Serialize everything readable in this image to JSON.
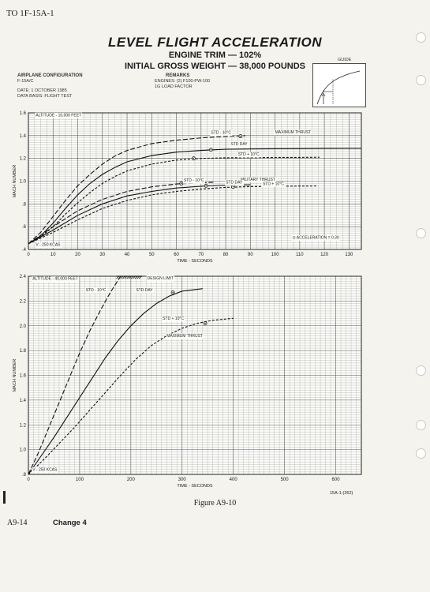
{
  "header": {
    "doc_number": "TO 1F-15A-1",
    "title": "LEVEL FLIGHT ACCELERATION",
    "subtitle1": "ENGINE TRIM — 102%",
    "subtitle2": "INITIAL GROSS WEIGHT — 38,000 POUNDS"
  },
  "config": {
    "label": "AIRPLANE CONFIGURATION",
    "value": "F-15A/C",
    "date": "DATE: 1 OCTOBER 1985",
    "data_basis": "DATA BASIS: FLIGHT TEST"
  },
  "remarks": {
    "label": "REMARKS",
    "line1": "ENGINES: (2) F100-PW-100",
    "line2": "1G LOAD FACTOR"
  },
  "guide_label": "GUIDE",
  "figure_caption": "Figure A9-10",
  "footer": {
    "page": "A9-14",
    "change": "Change 4",
    "figure_id": "15A-1-(262)"
  },
  "chart_data": [
    {
      "type": "line",
      "xlabel": "TIME - SECONDS",
      "ylabel": "MACH NUMBER",
      "xlim": [
        0,
        135
      ],
      "ylim": [
        0.4,
        1.6
      ],
      "xticks": [
        0,
        10,
        20,
        30,
        40,
        50,
        60,
        70,
        80,
        90,
        100,
        110,
        120,
        130
      ],
      "yticks": [
        0.4,
        0.6,
        0.8,
        1.0,
        1.2,
        1.4,
        1.6
      ],
      "ytick_labels": [
        ".4",
        ".6",
        ".8",
        "1.0",
        "1.2",
        "1.4",
        "1.6"
      ],
      "grid": true,
      "annotations": {
        "altitude": "ALTITUDE - 10,000 FEET",
        "start_speed": "V - 250 KCAS",
        "accel_note": "⊙ ACCELERATION = 0.30",
        "max_thrust": "MAXIMUM THRUST",
        "mil_thrust": "MILITARY THRUST"
      },
      "series": [
        {
          "name": "STD - 10°C",
          "group": "MAXIMUM THRUST",
          "style": "longdash",
          "x": [
            0,
            5,
            10,
            15,
            20,
            25,
            30,
            35,
            40,
            50,
            60,
            70,
            80,
            88
          ],
          "y": [
            0.45,
            0.55,
            0.69,
            0.83,
            0.96,
            1.06,
            1.15,
            1.22,
            1.27,
            1.33,
            1.36,
            1.38,
            1.395,
            1.4
          ]
        },
        {
          "name": "STD DAY",
          "group": "MAXIMUM THRUST",
          "style": "solid",
          "x": [
            0,
            5,
            10,
            15,
            20,
            25,
            30,
            35,
            40,
            50,
            60,
            70,
            80,
            90,
            100,
            110,
            120,
            135
          ],
          "y": [
            0.45,
            0.52,
            0.63,
            0.76,
            0.88,
            0.98,
            1.06,
            1.12,
            1.17,
            1.225,
            1.255,
            1.27,
            1.28,
            1.283,
            1.285,
            1.286,
            1.287,
            1.288
          ]
        },
        {
          "name": "STD + 10°C",
          "group": "MAXIMUM THRUST",
          "style": "shortdash",
          "x": [
            0,
            5,
            10,
            15,
            20,
            25,
            30,
            35,
            40,
            50,
            60,
            70,
            80,
            90,
            100,
            110,
            118
          ],
          "y": [
            0.45,
            0.51,
            0.6,
            0.71,
            0.81,
            0.9,
            0.98,
            1.04,
            1.09,
            1.15,
            1.185,
            1.2,
            1.205,
            1.207,
            1.208,
            1.209,
            1.21
          ]
        },
        {
          "name": "STD - 10°C",
          "group": "MILITARY THRUST",
          "style": "longdash",
          "x": [
            0,
            10,
            20,
            30,
            40,
            50,
            60,
            70,
            75
          ],
          "y": [
            0.45,
            0.6,
            0.74,
            0.84,
            0.91,
            0.95,
            0.975,
            0.985,
            0.99
          ]
        },
        {
          "name": "STD DAY",
          "group": "MILITARY THRUST",
          "style": "solid",
          "x": [
            0,
            10,
            20,
            30,
            40,
            50,
            60,
            70,
            80,
            90
          ],
          "y": [
            0.45,
            0.57,
            0.7,
            0.8,
            0.87,
            0.91,
            0.94,
            0.955,
            0.965,
            0.968
          ]
        },
        {
          "name": "STD + 10°C",
          "group": "MILITARY THRUST",
          "style": "shortdash",
          "x": [
            0,
            10,
            20,
            30,
            40,
            50,
            60,
            70,
            80,
            90,
            100,
            110,
            117
          ],
          "y": [
            0.45,
            0.55,
            0.66,
            0.76,
            0.83,
            0.88,
            0.91,
            0.93,
            0.945,
            0.952,
            0.955,
            0.957,
            0.958
          ]
        }
      ],
      "markers": [
        {
          "x": 86,
          "y": 1.395
        },
        {
          "x": 74,
          "y": 1.275
        },
        {
          "x": 67,
          "y": 1.2
        },
        {
          "x": 62,
          "y": 0.98
        },
        {
          "x": 72,
          "y": 0.96
        },
        {
          "x": 83,
          "y": 0.95
        }
      ]
    },
    {
      "type": "line",
      "xlabel": "TIME - SECONDS",
      "ylabel": "MACH NUMBER",
      "xlim": [
        0,
        650
      ],
      "ylim": [
        0.8,
        2.4
      ],
      "xticks": [
        0,
        100,
        200,
        300,
        400,
        500,
        600
      ],
      "yticks": [
        0.8,
        1.0,
        1.2,
        1.4,
        1.6,
        1.8,
        2.0,
        2.2,
        2.4
      ],
      "ytick_labels": [
        ".8",
        "1.0",
        "1.2",
        "1.4",
        "1.6",
        "1.8",
        "2.0",
        "2.2",
        "2.4"
      ],
      "grid": true,
      "annotations": {
        "altitude": "ALTITUDE - 40,000 FEET",
        "start_speed": "V - 250 KCAS",
        "design_limit": "DESIGN LIMIT",
        "max_thrust": "MAXIMUM THRUST"
      },
      "series": [
        {
          "name": "STD - 10°C",
          "style": "longdash",
          "x": [
            0,
            20,
            40,
            60,
            80,
            100,
            120,
            140,
            160,
            180
          ],
          "y": [
            0.8,
            0.98,
            1.18,
            1.38,
            1.58,
            1.78,
            1.96,
            2.12,
            2.27,
            2.4
          ]
        },
        {
          "name": "STD DAY",
          "style": "solid",
          "x": [
            0,
            25,
            50,
            75,
            100,
            125,
            150,
            175,
            200,
            225,
            250,
            275,
            300,
            340
          ],
          "y": [
            0.8,
            0.95,
            1.1,
            1.26,
            1.42,
            1.58,
            1.74,
            1.88,
            2.0,
            2.1,
            2.18,
            2.24,
            2.28,
            2.3
          ]
        },
        {
          "name": "STD + 10°C",
          "style": "shortdash",
          "x": [
            0,
            30,
            60,
            90,
            120,
            150,
            180,
            210,
            240,
            270,
            300,
            330,
            360,
            400
          ],
          "y": [
            0.8,
            0.92,
            1.05,
            1.18,
            1.32,
            1.46,
            1.6,
            1.73,
            1.84,
            1.92,
            1.98,
            2.02,
            2.045,
            2.06
          ]
        }
      ],
      "markers": [
        {
          "x": 282,
          "y": 2.27
        },
        {
          "x": 345,
          "y": 2.02
        }
      ]
    }
  ]
}
